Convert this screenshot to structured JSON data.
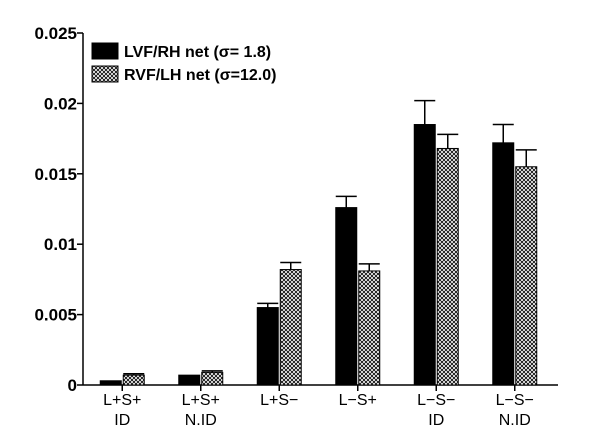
{
  "chart_data": {
    "type": "bar",
    "categories": [
      [
        "L+S+",
        "ID"
      ],
      [
        "L+S+",
        "N.ID"
      ],
      [
        "L+S−"
      ],
      [
        "L−S+"
      ],
      [
        "L−S−",
        "ID"
      ],
      [
        "L−S−",
        "N.ID"
      ]
    ],
    "series": [
      {
        "name": "LVF/RH net (σ= 1.8)",
        "fill": "solid",
        "color": "#000000",
        "values": [
          0.0003,
          0.0007,
          0.0055,
          0.0126,
          0.0185,
          0.0172
        ],
        "errors": [
          0.0,
          0.0,
          0.0003,
          0.0008,
          0.0017,
          0.0013
        ]
      },
      {
        "name": "RVF/LH net (σ=12.0)",
        "fill": "crosshatch",
        "color": "#000000",
        "values": [
          0.0007,
          0.0009,
          0.0082,
          0.0081,
          0.0168,
          0.0155
        ],
        "errors": [
          0.0001,
          0.0001,
          0.0005,
          0.0005,
          0.001,
          0.0012
        ]
      }
    ],
    "yticks": [
      "0",
      "0.005",
      "0.01",
      "0.015",
      "0.02",
      "0.025"
    ],
    "ytick_values": [
      0,
      0.005,
      0.01,
      0.015,
      0.02,
      0.025
    ],
    "ylim": [
      0,
      0.025
    ],
    "title": "",
    "xlabel": "",
    "ylabel": "",
    "grid": false,
    "legend_position": "top-left"
  }
}
